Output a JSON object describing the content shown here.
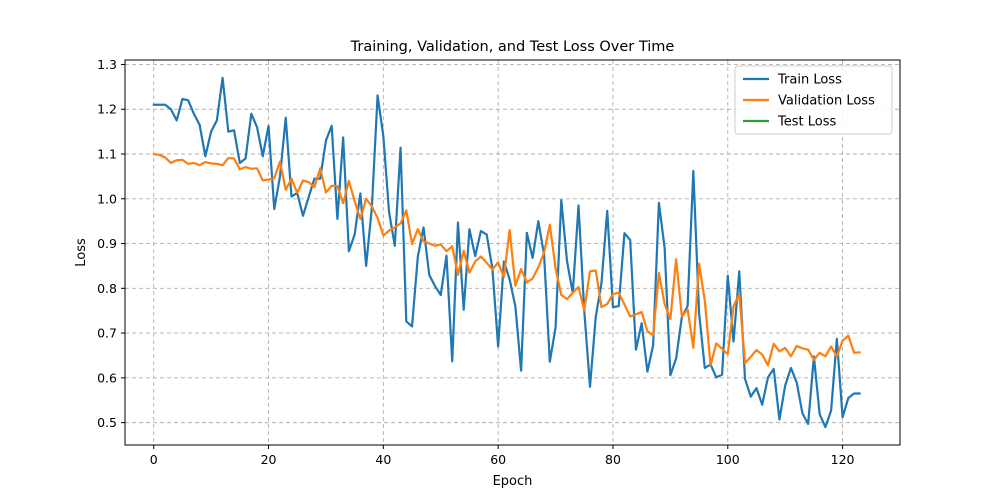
{
  "chart_data": {
    "type": "line",
    "title": "Training, Validation, and Test Loss Over Time",
    "xlabel": "Epoch",
    "ylabel": "Loss",
    "xlim": [
      -5,
      130
    ],
    "ylim": [
      0.45,
      1.31
    ],
    "xticks": [
      0,
      20,
      40,
      60,
      80,
      100,
      120
    ],
    "yticks": [
      0.5,
      0.6,
      0.7,
      0.8,
      0.9,
      1.0,
      1.1,
      1.2,
      1.3
    ],
    "xtick_labels": [
      "0",
      "20",
      "40",
      "60",
      "80",
      "100",
      "120"
    ],
    "ytick_labels": [
      "0.5",
      "0.6",
      "0.7",
      "0.8",
      "0.9",
      "1.0",
      "1.1",
      "1.2",
      "1.3"
    ],
    "grid": true,
    "legend_position": "top-right",
    "series": [
      {
        "name": "Train Loss",
        "color": "#1f77b4",
        "x_start": 0,
        "values": [
          1.21,
          1.21,
          1.21,
          1.2,
          1.175,
          1.223,
          1.22,
          1.19,
          1.165,
          1.095,
          1.15,
          1.175,
          1.27,
          1.15,
          1.153,
          1.08,
          1.09,
          1.19,
          1.16,
          1.095,
          1.163,
          0.977,
          1.05,
          1.181,
          1.005,
          1.013,
          0.962,
          1.004,
          1.045,
          1.045,
          1.13,
          1.163,
          0.955,
          1.137,
          0.883,
          0.92,
          1.012,
          0.85,
          0.98,
          1.231,
          1.14,
          0.97,
          0.895,
          1.114,
          0.726,
          0.715,
          0.87,
          0.936,
          0.83,
          0.805,
          0.785,
          0.873,
          0.637,
          0.947,
          0.752,
          0.932,
          0.872,
          0.928,
          0.92,
          0.844,
          0.67,
          0.86,
          0.82,
          0.76,
          0.616,
          0.924,
          0.868,
          0.95,
          0.875,
          0.636,
          0.712,
          0.997,
          0.86,
          0.79,
          0.985,
          0.75,
          0.58,
          0.736,
          0.812,
          0.973,
          0.758,
          0.76,
          0.923,
          0.908,
          0.663,
          0.722,
          0.614,
          0.673,
          0.991,
          0.89,
          0.606,
          0.643,
          0.736,
          0.76,
          1.062,
          0.745,
          0.622,
          0.63,
          0.601,
          0.607,
          0.828,
          0.681,
          0.838,
          0.598,
          0.558,
          0.577,
          0.54,
          0.601,
          0.62,
          0.507,
          0.583,
          0.622,
          0.59,
          0.521,
          0.497,
          0.648,
          0.519,
          0.49,
          0.527,
          0.687,
          0.512,
          0.555,
          0.565,
          0.565
        ]
      },
      {
        "name": "Validation Loss",
        "color": "#ff7f0e",
        "x_start": 0,
        "values": [
          1.1,
          1.098,
          1.092,
          1.08,
          1.086,
          1.087,
          1.078,
          1.08,
          1.075,
          1.082,
          1.079,
          1.078,
          1.075,
          1.091,
          1.09,
          1.066,
          1.071,
          1.067,
          1.068,
          1.041,
          1.043,
          1.046,
          1.083,
          1.02,
          1.045,
          1.013,
          1.041,
          1.037,
          1.026,
          1.068,
          1.014,
          1.029,
          1.028,
          0.99,
          1.04,
          0.995,
          0.955,
          1.0,
          0.983,
          0.957,
          0.918,
          0.929,
          0.936,
          0.945,
          0.974,
          0.899,
          0.932,
          0.905,
          0.9,
          0.895,
          0.898,
          0.883,
          0.894,
          0.83,
          0.884,
          0.835,
          0.86,
          0.871,
          0.857,
          0.842,
          0.858,
          0.825,
          0.93,
          0.806,
          0.843,
          0.813,
          0.822,
          0.847,
          0.88,
          0.942,
          0.845,
          0.785,
          0.776,
          0.79,
          0.803,
          0.751,
          0.838,
          0.84,
          0.758,
          0.765,
          0.787,
          0.79,
          0.764,
          0.737,
          0.742,
          0.747,
          0.704,
          0.695,
          0.834,
          0.765,
          0.731,
          0.865,
          0.737,
          0.753,
          0.667,
          0.855,
          0.772,
          0.628,
          0.677,
          0.665,
          0.653,
          0.76,
          0.787,
          0.633,
          0.647,
          0.662,
          0.652,
          0.628,
          0.676,
          0.659,
          0.667,
          0.648,
          0.671,
          0.666,
          0.663,
          0.64,
          0.656,
          0.648,
          0.67,
          0.648,
          0.683,
          0.694,
          0.656,
          0.657
        ]
      },
      {
        "name": "Test Loss",
        "color": "#2ca02c",
        "x_start": 0,
        "values": []
      }
    ]
  }
}
